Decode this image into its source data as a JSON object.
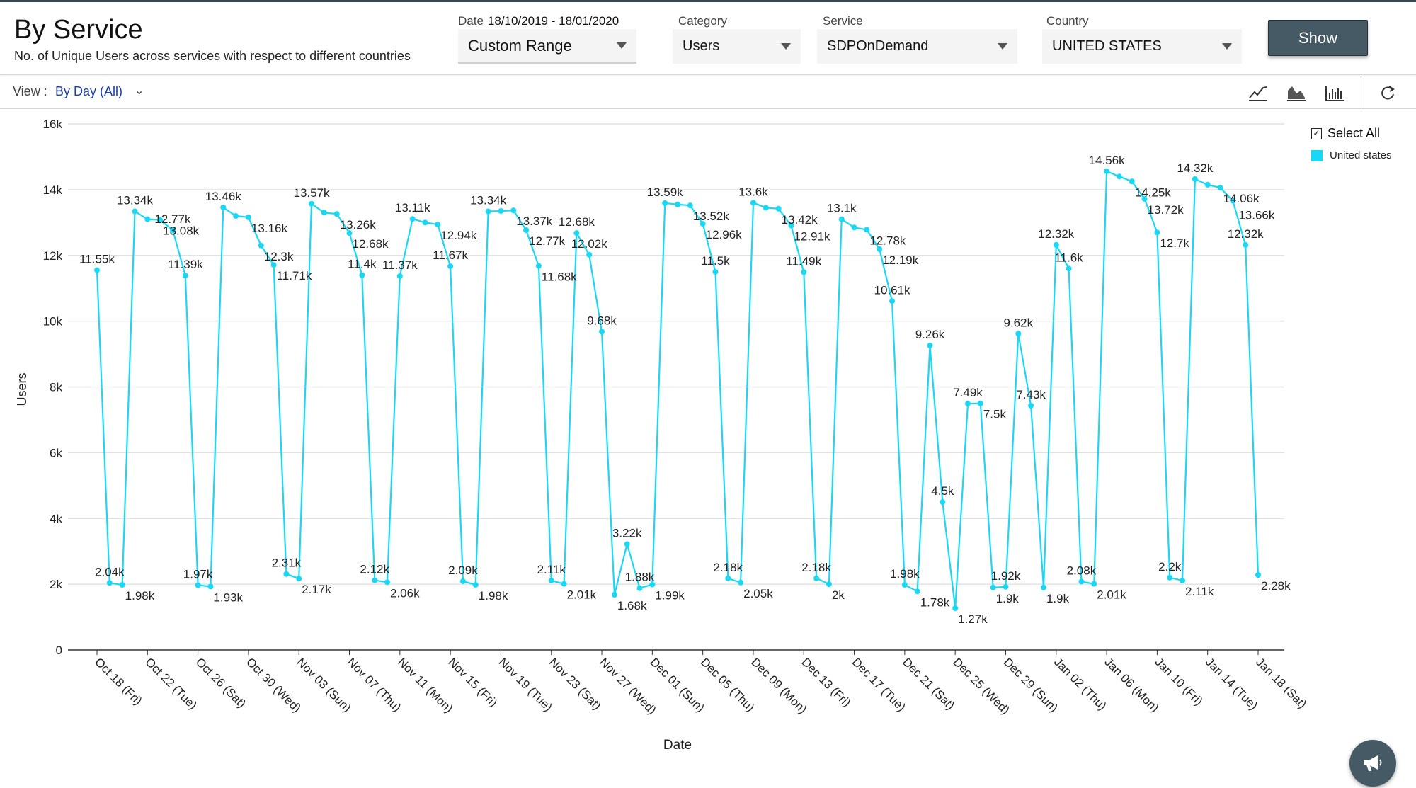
{
  "header": {
    "title": "By Service",
    "subtitle": "No. of Unique Users across services with respect to different countries",
    "date_label": "Date",
    "date_range": "18/10/2019 - 18/01/2020",
    "date_select": "Custom Range",
    "category_label": "Category",
    "category_select": "Users",
    "service_label": "Service",
    "service_select": "SDPOnDemand",
    "country_label": "Country",
    "country_select": "UNITED STATES",
    "show_label": "Show"
  },
  "toolbar": {
    "view_label": "View :",
    "view_value": "By Day  (All)",
    "icons": [
      "line-chart-icon",
      "area-chart-icon",
      "bar-chart-icon",
      "refresh-icon"
    ]
  },
  "legend": {
    "select_all": "Select All",
    "select_all_checked": true,
    "items": [
      {
        "label": "United states",
        "color": "#1ad8f5"
      }
    ]
  },
  "colors": {
    "series": "#1ad8f5",
    "button": "#455a64",
    "link": "#1a3fb0"
  },
  "chart_data": {
    "type": "line",
    "xlabel": "Date",
    "ylabel": "Users",
    "ylim": [
      0,
      16000
    ],
    "yticks": [
      "0",
      "2k",
      "4k",
      "6k",
      "8k",
      "10k",
      "12k",
      "14k",
      "16k"
    ],
    "grid": true,
    "legend_position": "right",
    "x_tick_labels": [
      "Oct 18 (Fri)",
      "Oct 22 (Tue)",
      "Oct 26 (Sat)",
      "Oct 30 (Wed)",
      "Nov 03 (Sun)",
      "Nov 07 (Thu)",
      "Nov 11 (Mon)",
      "Nov 15 (Fri)",
      "Nov 19 (Tue)",
      "Nov 23 (Sat)",
      "Nov 27 (Wed)",
      "Dec 01 (Sun)",
      "Dec 05 (Thu)",
      "Dec 09 (Mon)",
      "Dec 13 (Fri)",
      "Dec 17 (Tue)",
      "Dec 21 (Sat)",
      "Dec 25 (Wed)",
      "Dec 29 (Sun)",
      "Jan 02 (Thu)",
      "Jan 06 (Mon)",
      "Jan 10 (Fri)",
      "Jan 14 (Tue)",
      "Jan 18 (Sat)"
    ],
    "x_start": "2019-10-18",
    "x_end": "2020-01-18",
    "series": [
      {
        "name": "United states",
        "values": [
          11550,
          2040,
          1980,
          13340,
          13100,
          13080,
          12770,
          11390,
          1970,
          1930,
          13460,
          13200,
          13160,
          12300,
          11710,
          2310,
          2170,
          13570,
          13300,
          13260,
          12680,
          11400,
          2120,
          2060,
          11370,
          13110,
          13000,
          12940,
          11670,
          2090,
          1980,
          13340,
          13350,
          13370,
          12770,
          11680,
          2110,
          2010,
          12680,
          12020,
          9680,
          1680,
          3220,
          1880,
          1990,
          13590,
          13550,
          13520,
          12960,
          11500,
          2180,
          2050,
          13600,
          13450,
          13420,
          12910,
          11490,
          2180,
          2000,
          13100,
          12850,
          12780,
          12190,
          10610,
          1980,
          1780,
          9260,
          4500,
          1270,
          7490,
          7500,
          1900,
          1920,
          9620,
          7430,
          1900,
          12320,
          11600,
          2080,
          2010,
          14560,
          14400,
          14250,
          13720,
          12700,
          2200,
          2110,
          14320,
          14150,
          14060,
          13660,
          12320,
          2280
        ],
        "labels": [
          "11.55k",
          "2.04k",
          "1.98k",
          "13.34k",
          "",
          "13.08k",
          "12.77k",
          "11.39k",
          "1.97k",
          "1.93k",
          "13.46k",
          "",
          "13.16k",
          "12.3k",
          "11.71k",
          "2.31k",
          "2.17k",
          "13.57k",
          "",
          "13.26k",
          "12.68k",
          "11.4k",
          "2.12k",
          "2.06k",
          "11.37k",
          "13.11k",
          "",
          "12.94k",
          "11.67k",
          "2.09k",
          "1.98k",
          "13.34k",
          "",
          "13.37k",
          "12.77k",
          "11.68k",
          "2.11k",
          "2.01k",
          "12.68k",
          "12.02k",
          "9.68k",
          "1.68k",
          "3.22k",
          "1.88k",
          "1.99k",
          "13.59k",
          "",
          "13.52k",
          "12.96k",
          "11.5k",
          "2.18k",
          "2.05k",
          "13.6k",
          "",
          "13.42k",
          "12.91k",
          "11.49k",
          "2.18k",
          "2k",
          "13.1k",
          "",
          "12.78k",
          "12.19k",
          "10.61k",
          "1.98k",
          "1.78k",
          "9.26k",
          "4.5k",
          "1.27k",
          "7.49k",
          "7.5k",
          "1.9k",
          "1.92k",
          "9.62k",
          "7.43k",
          "1.9k",
          "12.32k",
          "11.6k",
          "2.08k",
          "2.01k",
          "14.56k",
          "",
          "14.25k",
          "13.72k",
          "12.7k",
          "2.2k",
          "2.11k",
          "14.32k",
          "",
          "14.06k",
          "13.66k",
          "12.32k",
          "2.28k"
        ]
      }
    ]
  }
}
